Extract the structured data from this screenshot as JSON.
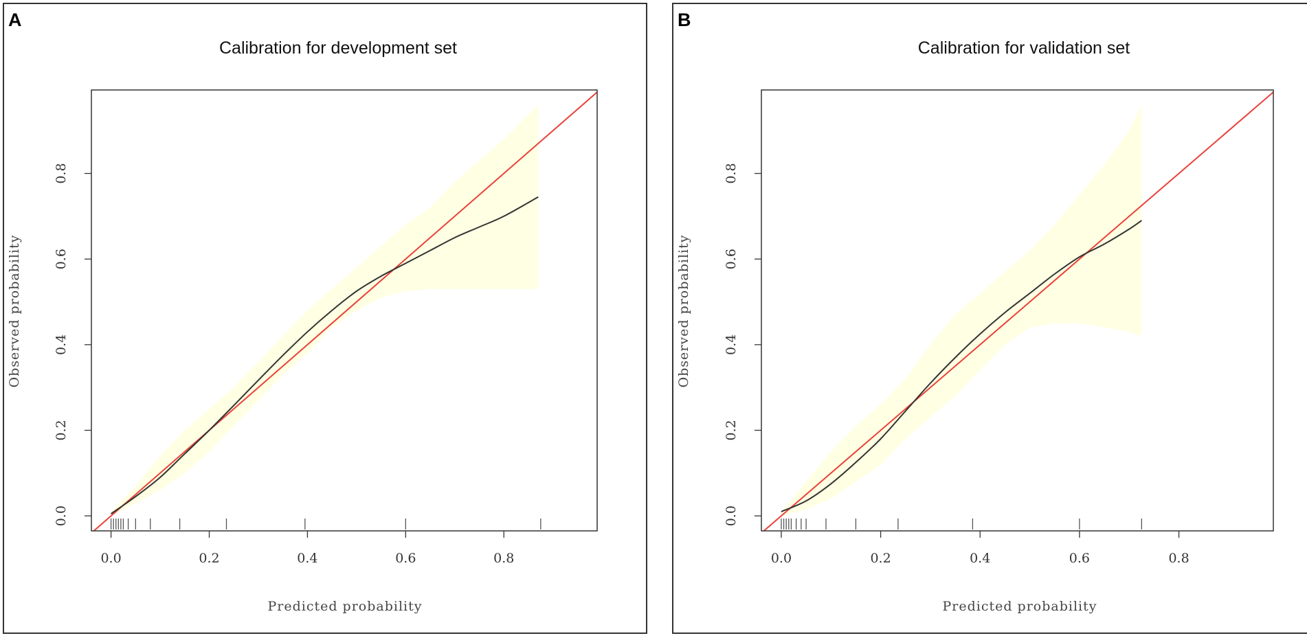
{
  "colors": {
    "band": "#FFFFE3",
    "ideal_line": "#E8413A",
    "fit_line": "#333333",
    "frame": "#333333"
  },
  "chart_data": [
    {
      "panel": "A",
      "type": "line",
      "title": "Calibration for development set",
      "xlabel": "Predicted probability",
      "ylabel": "Observed probability",
      "xlim": [
        -0.04,
        0.99
      ],
      "ylim": [
        -0.035,
        0.995
      ],
      "xticks": [
        0.0,
        0.2,
        0.4,
        0.6,
        0.8
      ],
      "xtick_labels": [
        "0.0",
        "0.2",
        "0.4",
        "0.6",
        "0.8"
      ],
      "yticks": [
        0.0,
        0.2,
        0.4,
        0.6,
        0.8
      ],
      "ytick_labels": [
        "0.0",
        "0.2",
        "0.4",
        "0.6",
        "0.8"
      ],
      "ideal_line": {
        "name": "ideal",
        "x": [
          -0.04,
          0.99
        ],
        "y": [
          -0.04,
          0.99
        ]
      },
      "calibration_curve": {
        "name": "calibration",
        "x": [
          0.0,
          0.05,
          0.1,
          0.15,
          0.2,
          0.25,
          0.3,
          0.35,
          0.4,
          0.45,
          0.5,
          0.55,
          0.6,
          0.65,
          0.7,
          0.75,
          0.8,
          0.87
        ],
        "y": [
          0.005,
          0.045,
          0.09,
          0.145,
          0.2,
          0.258,
          0.317,
          0.375,
          0.43,
          0.48,
          0.525,
          0.56,
          0.59,
          0.62,
          0.65,
          0.675,
          0.7,
          0.745
        ]
      },
      "confidence_band": {
        "name": "95% confidence band",
        "x": [
          0.0,
          0.05,
          0.1,
          0.15,
          0.2,
          0.25,
          0.3,
          0.35,
          0.4,
          0.45,
          0.5,
          0.55,
          0.6,
          0.65,
          0.7,
          0.75,
          0.8,
          0.87
        ],
        "upper": [
          0.01,
          0.07,
          0.14,
          0.2,
          0.25,
          0.3,
          0.36,
          0.42,
          0.48,
          0.53,
          0.58,
          0.63,
          0.68,
          0.72,
          0.78,
          0.83,
          0.88,
          0.96
        ],
        "lower": [
          0.0,
          0.03,
          0.06,
          0.1,
          0.15,
          0.21,
          0.27,
          0.33,
          0.38,
          0.44,
          0.48,
          0.51,
          0.525,
          0.53,
          0.53,
          0.53,
          0.53,
          0.53
        ]
      },
      "rug": [
        0.0,
        0.005,
        0.01,
        0.015,
        0.02,
        0.025,
        0.035,
        0.05,
        0.08,
        0.14,
        0.235,
        0.395,
        0.6,
        0.875
      ]
    },
    {
      "panel": "B",
      "type": "line",
      "title": "Calibration for validation set",
      "xlabel": "Predicted probability",
      "ylabel": "Observed probability",
      "xlim": [
        -0.04,
        0.99
      ],
      "ylim": [
        -0.035,
        0.995
      ],
      "xticks": [
        0.0,
        0.2,
        0.4,
        0.6,
        0.8
      ],
      "xtick_labels": [
        "0.0",
        "0.2",
        "0.4",
        "0.6",
        "0.8"
      ],
      "yticks": [
        0.0,
        0.2,
        0.4,
        0.6,
        0.8
      ],
      "ytick_labels": [
        "0.0",
        "0.2",
        "0.4",
        "0.6",
        "0.8"
      ],
      "ideal_line": {
        "name": "ideal",
        "x": [
          -0.04,
          0.99
        ],
        "y": [
          -0.04,
          0.99
        ]
      },
      "calibration_curve": {
        "name": "calibration",
        "x": [
          0.0,
          0.05,
          0.1,
          0.15,
          0.2,
          0.25,
          0.3,
          0.35,
          0.4,
          0.45,
          0.5,
          0.55,
          0.6,
          0.65,
          0.7,
          0.725
        ],
        "y": [
          0.01,
          0.035,
          0.075,
          0.125,
          0.18,
          0.245,
          0.31,
          0.37,
          0.425,
          0.475,
          0.52,
          0.565,
          0.605,
          0.635,
          0.67,
          0.69
        ]
      },
      "confidence_band": {
        "name": "95% confidence band",
        "x": [
          0.0,
          0.05,
          0.1,
          0.15,
          0.2,
          0.25,
          0.3,
          0.35,
          0.4,
          0.45,
          0.5,
          0.55,
          0.6,
          0.65,
          0.7,
          0.725
        ],
        "upper": [
          0.01,
          0.08,
          0.15,
          0.21,
          0.26,
          0.32,
          0.4,
          0.47,
          0.52,
          0.57,
          0.62,
          0.68,
          0.75,
          0.82,
          0.9,
          0.96
        ],
        "lower": [
          0.0,
          0.015,
          0.04,
          0.08,
          0.12,
          0.18,
          0.23,
          0.28,
          0.34,
          0.4,
          0.44,
          0.45,
          0.45,
          0.44,
          0.43,
          0.42
        ]
      },
      "rug": [
        0.0,
        0.005,
        0.01,
        0.015,
        0.02,
        0.03,
        0.04,
        0.05,
        0.09,
        0.15,
        0.235,
        0.385,
        0.6,
        0.725
      ]
    }
  ]
}
